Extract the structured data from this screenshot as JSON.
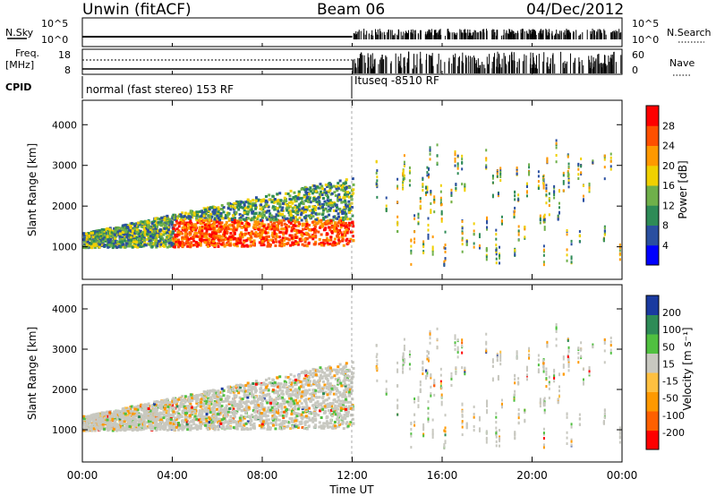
{
  "header": {
    "station": "Unwin (fitACF)",
    "beam": "Beam 06",
    "date": "04/Dec/2012"
  },
  "status_panels": {
    "nsky_label": "N.Sky",
    "nsearch_label": "N.Search",
    "freq_label_line1": "Freq.",
    "freq_label_line2": "[MHz]",
    "nave_label": "Nave",
    "cpid_label": "CPID",
    "count_ticks": [
      "10^5",
      "10^0"
    ],
    "freq_ticks": [
      "18",
      "8"
    ],
    "nave_ticks": [
      "60",
      "0"
    ]
  },
  "cpid_modes": [
    {
      "label": "normal (fast stereo) 153 RF",
      "start": "00:00",
      "end": "12:00"
    },
    {
      "label": "Ituseq -8510 RF",
      "start": "12:00",
      "end": "24:00"
    }
  ],
  "colors": {
    "power_scale": [
      "#0000ff",
      "#2a4fa0",
      "#2e8b57",
      "#6fb04a",
      "#f0d000",
      "#ff9900",
      "#ff5000",
      "#ff0000"
    ],
    "velocity_scale": [
      "#ff0000",
      "#ff6000",
      "#ff9900",
      "#ffc040",
      "#c8c8c0",
      "#50c040",
      "#2e8b57",
      "#1a3aa0"
    ]
  },
  "chart_data": [
    {
      "type": "heatmap",
      "name": "power",
      "xlabel": "",
      "ylabel": "Slant Range [km]",
      "x_ticks": [
        "00:00",
        "04:00",
        "08:00",
        "12:00",
        "16:00",
        "20:00",
        "00:00"
      ],
      "y_ticks": [
        1000,
        2000,
        3000,
        4000
      ],
      "ylim": [
        200,
        4600
      ],
      "xlim_hours": [
        0,
        24
      ],
      "colorbar": {
        "label": "Power [dB]",
        "ticks": [
          4,
          8,
          12,
          16,
          20,
          24,
          28
        ],
        "range": [
          0,
          32
        ]
      },
      "grid": false
    },
    {
      "type": "heatmap",
      "name": "velocity",
      "xlabel": "Time UT",
      "ylabel": "Slant Range [km]",
      "x_ticks": [
        "00:00",
        "04:00",
        "08:00",
        "12:00",
        "16:00",
        "20:00",
        "00:00"
      ],
      "y_ticks": [
        1000,
        2000,
        3000,
        4000
      ],
      "ylim": [
        200,
        4600
      ],
      "xlim_hours": [
        0,
        24
      ],
      "colorbar": {
        "label": "Velocity [m s⁻¹]",
        "ticks": [
          200,
          100,
          50,
          15,
          -15,
          -50,
          -100,
          -200
        ]
      },
      "grid": false
    }
  ]
}
